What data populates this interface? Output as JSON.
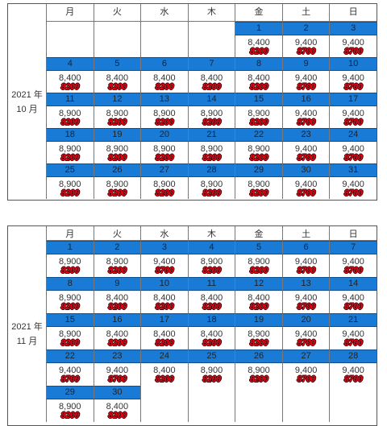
{
  "weekdays": [
    "月",
    "火",
    "水",
    "木",
    "金",
    "土",
    "日"
  ],
  "october": {
    "label_year": "2021 年",
    "label_month": "10 月",
    "weeks": [
      {
        "dates": [
          "",
          "",
          "",
          "",
          "1",
          "2",
          "3"
        ],
        "prices_a": [
          "",
          "",
          "",
          "",
          "8,400",
          "9,400",
          "9,400"
        ],
        "prices_b": [
          "",
          "",
          "",
          "",
          "8200",
          "8700",
          "8700"
        ]
      },
      {
        "dates": [
          "4",
          "5",
          "6",
          "7",
          "8",
          "9",
          "10"
        ],
        "prices_a": [
          "8,400",
          "8,400",
          "8,400",
          "8,400",
          "8,400",
          "9,400",
          "9,400"
        ],
        "prices_b": [
          "8200",
          "8200",
          "8200",
          "8200",
          "8200",
          "8700",
          "8700"
        ]
      },
      {
        "dates": [
          "11",
          "12",
          "13",
          "14",
          "15",
          "16",
          "17"
        ],
        "prices_a": [
          "8,900",
          "8,900",
          "8,900",
          "8,900",
          "8,900",
          "9,400",
          "9,400"
        ],
        "prices_b": [
          "8200",
          "8200",
          "8200",
          "8200",
          "8200",
          "8700",
          "8700"
        ]
      },
      {
        "dates": [
          "18",
          "19",
          "20",
          "21",
          "22",
          "23",
          "24"
        ],
        "prices_a": [
          "8,900",
          "8,900",
          "8,900",
          "8,900",
          "8,900",
          "9,400",
          "9,400"
        ],
        "prices_b": [
          "8200",
          "8200",
          "8200",
          "8200",
          "8200",
          "8700",
          "8700"
        ]
      },
      {
        "dates": [
          "25",
          "26",
          "27",
          "28",
          "29",
          "30",
          "31"
        ],
        "prices_a": [
          "8,900",
          "8,900",
          "8,900",
          "8,900",
          "8,900",
          "9,400",
          "9,400"
        ],
        "prices_b": [
          "8200",
          "8200",
          "8200",
          "8200",
          "8200",
          "8700",
          "8700"
        ]
      }
    ]
  },
  "november": {
    "label_year": "2021 年",
    "label_month": "11 月",
    "weeks": [
      {
        "dates": [
          "1",
          "2",
          "3",
          "4",
          "5",
          "6",
          "7"
        ],
        "prices_a": [
          "8,900",
          "8,900",
          "9,400",
          "8,900",
          "8,900",
          "9,400",
          "9,400"
        ],
        "prices_b": [
          "8200",
          "8200",
          "8700",
          "8200",
          "8200",
          "8700",
          "8700"
        ]
      },
      {
        "dates": [
          "8",
          "9",
          "10",
          "11",
          "12",
          "13",
          "14"
        ],
        "prices_a": [
          "8,900",
          "8,400",
          "8,400",
          "8,400",
          "8,400",
          "9,400",
          "9,400"
        ],
        "prices_b": [
          "8200",
          "8200",
          "8200",
          "8200",
          "8200",
          "8700",
          "8700"
        ]
      },
      {
        "dates": [
          "15",
          "16",
          "17",
          "18",
          "19",
          "20",
          "21"
        ],
        "prices_a": [
          "8,900",
          "8,400",
          "8,400",
          "8,400",
          "8,900",
          "9,400",
          "9,400"
        ],
        "prices_b": [
          "8200",
          "8200",
          "8200",
          "8200",
          "8200",
          "8700",
          "8700"
        ]
      },
      {
        "dates": [
          "22",
          "23",
          "24",
          "25",
          "26",
          "27",
          "28"
        ],
        "prices_a": [
          "9,400",
          "9,400",
          "8,400",
          "8,900",
          "8,900",
          "9,400",
          "9,400"
        ],
        "prices_b": [
          "8700",
          "8700",
          "8200",
          "8200",
          "8200",
          "8700",
          "8700"
        ]
      },
      {
        "dates": [
          "29",
          "30",
          "",
          "",
          "",
          "",
          ""
        ],
        "prices_a": [
          "8,900",
          "8,400",
          "",
          "",
          "",
          "",
          ""
        ],
        "prices_b": [
          "8200",
          "8200",
          "",
          "",
          "",
          "",
          ""
        ]
      }
    ]
  }
}
